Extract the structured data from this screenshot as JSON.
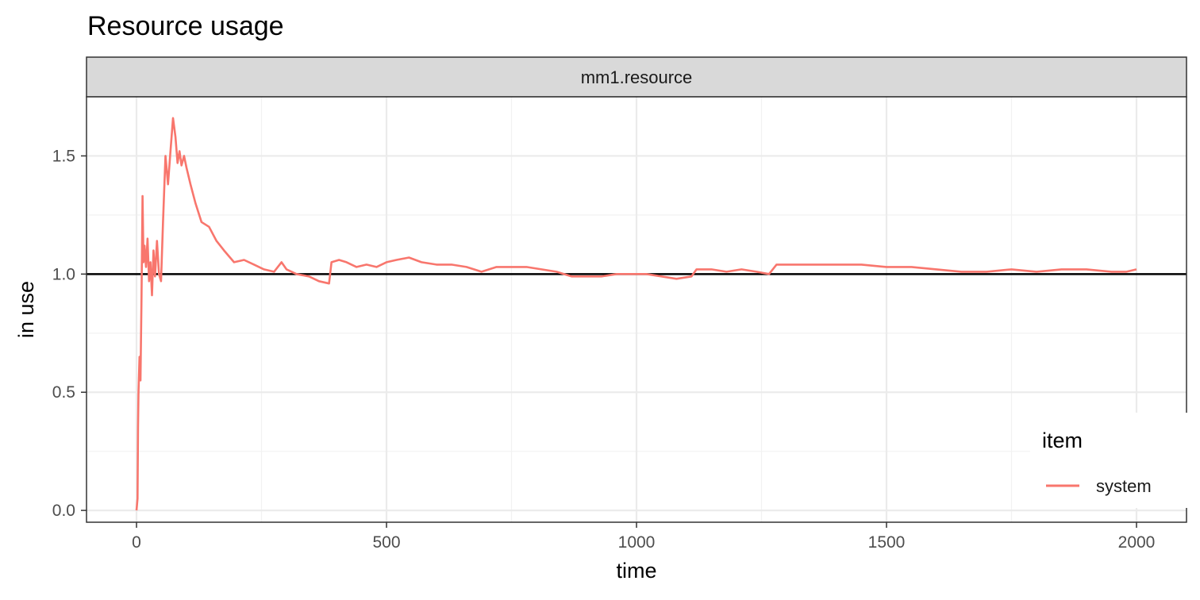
{
  "chart_data": {
    "type": "line",
    "title": "Resource usage",
    "facet": "mm1.resource",
    "xlabel": "time",
    "ylabel": "in use",
    "xlim": [
      -100,
      2100
    ],
    "ylim": [
      -0.05,
      1.75
    ],
    "x_ticks": [
      0,
      500,
      1000,
      1500,
      2000
    ],
    "x_tick_labels": [
      "0",
      "500",
      "1000",
      "1500",
      "2000"
    ],
    "y_ticks": [
      0,
      0.5,
      1,
      1.5
    ],
    "y_tick_labels": [
      "0.0",
      "0.5",
      "1.0",
      "1.5"
    ],
    "grid": true,
    "reference_line": {
      "y": 1.0,
      "color": "#000000"
    },
    "legend": {
      "title": "item",
      "position": "bottom-right"
    },
    "series": [
      {
        "name": "system",
        "color": "#F8766D",
        "x": [
          0,
          2,
          3,
          4,
          6,
          8,
          10,
          12,
          14,
          16,
          19,
          22,
          25,
          28,
          31,
          34,
          37,
          41,
          45,
          49,
          53,
          58,
          63,
          68,
          73,
          78,
          82,
          86,
          90,
          95,
          100,
          108,
          118,
          130,
          145,
          160,
          175,
          195,
          215,
          235,
          255,
          275,
          290,
          300,
          320,
          345,
          365,
          385,
          390,
          405,
          420,
          440,
          460,
          480,
          500,
          520,
          545,
          570,
          600,
          630,
          660,
          690,
          720,
          750,
          780,
          810,
          840,
          870,
          900,
          930,
          960,
          990,
          1020,
          1050,
          1080,
          1110,
          1120,
          1150,
          1180,
          1210,
          1240,
          1265,
          1280,
          1300,
          1350,
          1400,
          1450,
          1500,
          1550,
          1600,
          1650,
          1700,
          1750,
          1800,
          1850,
          1900,
          1950,
          1980,
          2000
        ],
        "values": [
          0.0,
          0.05,
          0.35,
          0.5,
          0.65,
          0.55,
          0.9,
          1.33,
          1.05,
          1.12,
          1.03,
          1.15,
          0.97,
          1.05,
          0.91,
          1.1,
          0.99,
          1.14,
          1.0,
          0.97,
          1.22,
          1.5,
          1.38,
          1.52,
          1.66,
          1.58,
          1.47,
          1.52,
          1.46,
          1.5,
          1.45,
          1.38,
          1.3,
          1.22,
          1.2,
          1.14,
          1.1,
          1.05,
          1.06,
          1.04,
          1.02,
          1.01,
          1.05,
          1.02,
          1.0,
          0.99,
          0.97,
          0.96,
          1.05,
          1.06,
          1.05,
          1.03,
          1.04,
          1.03,
          1.05,
          1.06,
          1.07,
          1.05,
          1.04,
          1.04,
          1.03,
          1.01,
          1.03,
          1.03,
          1.03,
          1.02,
          1.01,
          0.99,
          0.99,
          0.99,
          1.0,
          1.0,
          1.0,
          0.99,
          0.98,
          0.99,
          1.02,
          1.02,
          1.01,
          1.02,
          1.01,
          1.0,
          1.04,
          1.04,
          1.04,
          1.04,
          1.04,
          1.03,
          1.03,
          1.02,
          1.01,
          1.01,
          1.02,
          1.01,
          1.02,
          1.02,
          1.01,
          1.01,
          1.02
        ]
      }
    ]
  }
}
